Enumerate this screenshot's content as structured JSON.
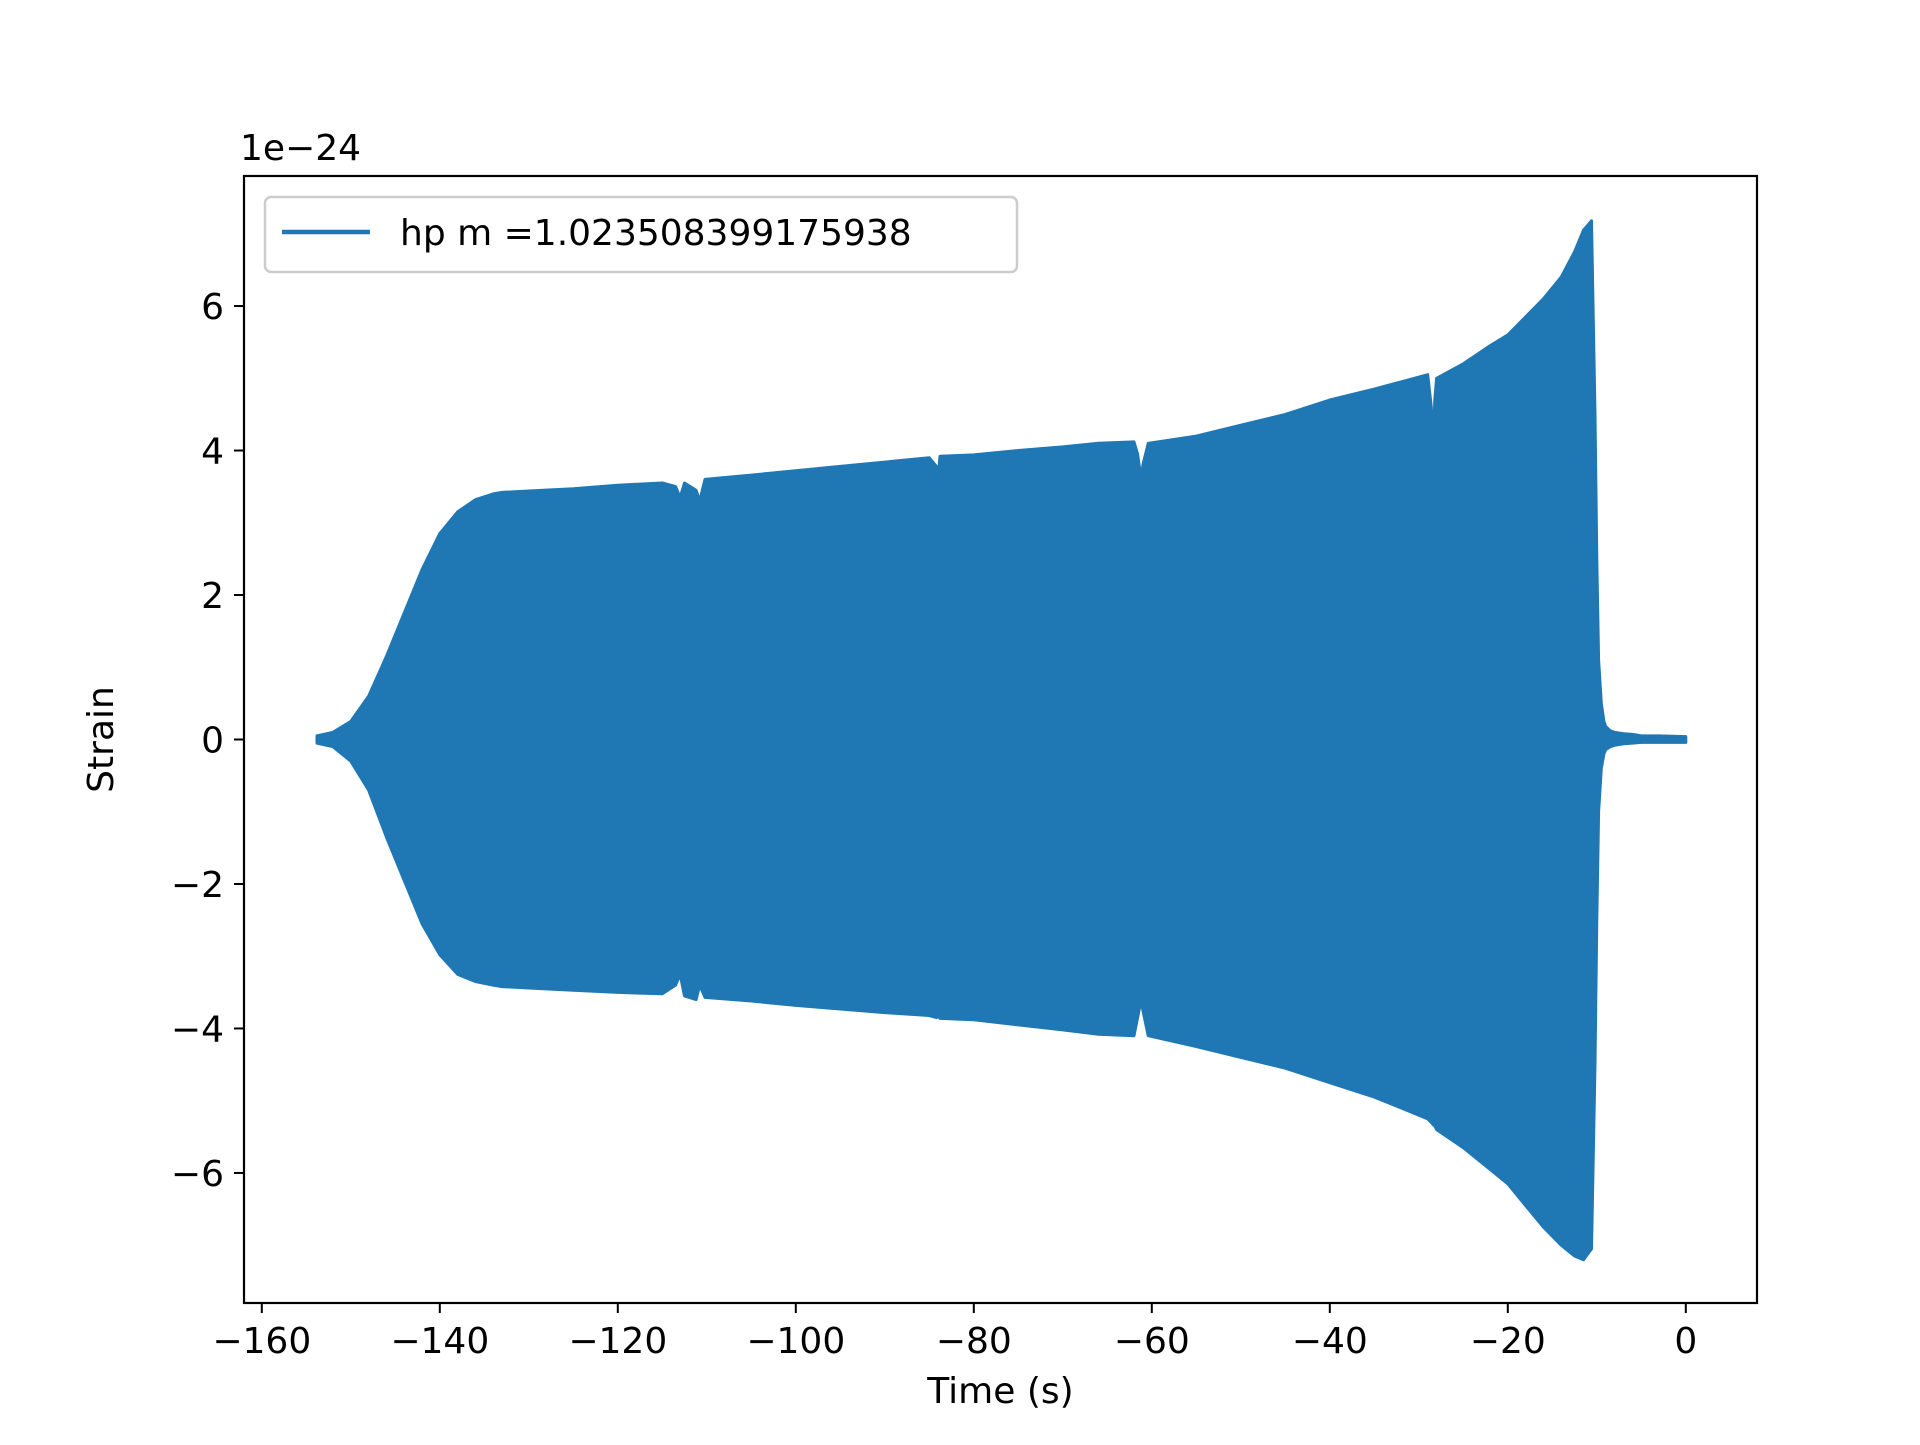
{
  "chart_data": {
    "type": "line",
    "title": "",
    "xlabel": "Time (s)",
    "ylabel": "Strain",
    "offset_text": "1e−24",
    "xlim": [
      -162,
      8
    ],
    "ylim": [
      -7.8,
      7.8
    ],
    "xticks": [
      -160,
      -140,
      -120,
      -100,
      -80,
      -60,
      -40,
      -20,
      0
    ],
    "xtick_labels": [
      "−160",
      "−140",
      "−120",
      "−100",
      "−80",
      "−60",
      "−40",
      "−20",
      "0"
    ],
    "yticks": [
      -6,
      -4,
      -2,
      0,
      2,
      4,
      6
    ],
    "ytick_labels": [
      "−6",
      "−4",
      "−2",
      "0",
      "2",
      "4",
      "6"
    ],
    "grid": false,
    "legend_position": "top-left",
    "series": [
      {
        "name": "hp m =1.023508399175938",
        "color": "#1f77b4",
        "style": "dense oscillation; envelope shown",
        "x": [
          -153.8,
          -152,
          -150,
          -148,
          -146,
          -144,
          -142,
          -140,
          -138,
          -136,
          -134,
          -133,
          -130,
          -125,
          -120,
          -115,
          -113.5,
          -113,
          -112.5,
          -111.2,
          -110.8,
          -110.2,
          -105,
          -100,
          -95,
          -90,
          -85,
          -84.2,
          -84,
          -83.8,
          -80,
          -75,
          -70,
          -66,
          -62,
          -61.6,
          -61.2,
          -61,
          -60.4,
          -55,
          -50,
          -45,
          -40,
          -35,
          -32,
          -29,
          -28.6,
          -28.4,
          -28.2,
          -28,
          -25,
          -22,
          -20,
          -18,
          -16,
          -14,
          -12.5,
          -11.5,
          -10.6,
          -10.2,
          -10.0,
          -9.8,
          -9.5,
          -9.2,
          -9.0,
          -8.5,
          -8.0,
          -7.0,
          -6.0,
          -5.0,
          -3.0,
          0
        ],
        "y_upper": [
          0.05,
          0.1,
          0.25,
          0.6,
          1.15,
          1.75,
          2.35,
          2.85,
          3.15,
          3.32,
          3.4,
          3.42,
          3.44,
          3.47,
          3.52,
          3.55,
          3.5,
          3.35,
          3.55,
          3.45,
          3.3,
          3.6,
          3.66,
          3.72,
          3.78,
          3.84,
          3.9,
          3.78,
          3.65,
          3.92,
          3.94,
          4.0,
          4.05,
          4.1,
          4.12,
          3.95,
          3.6,
          3.8,
          4.1,
          4.2,
          4.35,
          4.5,
          4.7,
          4.85,
          4.95,
          5.05,
          4.6,
          4.0,
          4.7,
          5.0,
          5.2,
          5.45,
          5.6,
          5.85,
          6.1,
          6.4,
          6.75,
          7.05,
          7.18,
          4.5,
          2.5,
          1.1,
          0.5,
          0.25,
          0.18,
          0.12,
          0.1,
          0.08,
          0.07,
          0.05,
          0.05,
          0.04
        ],
        "y_lower": [
          -0.05,
          -0.1,
          -0.3,
          -0.7,
          -1.35,
          -1.95,
          -2.55,
          -2.98,
          -3.25,
          -3.35,
          -3.4,
          -3.42,
          -3.44,
          -3.47,
          -3.5,
          -3.52,
          -3.4,
          -3.25,
          -3.55,
          -3.6,
          -3.4,
          -3.57,
          -3.62,
          -3.68,
          -3.73,
          -3.78,
          -3.82,
          -3.85,
          -3.82,
          -3.86,
          -3.88,
          -3.95,
          -4.02,
          -4.08,
          -4.1,
          -3.85,
          -3.6,
          -3.75,
          -4.1,
          -4.25,
          -4.4,
          -4.55,
          -4.75,
          -4.95,
          -5.1,
          -5.25,
          -5.3,
          -5.33,
          -5.35,
          -5.4,
          -5.65,
          -5.95,
          -6.15,
          -6.45,
          -6.75,
          -7.0,
          -7.15,
          -7.2,
          -7.05,
          -4.5,
          -2.5,
          -1.0,
          -0.4,
          -0.2,
          -0.14,
          -0.1,
          -0.08,
          -0.06,
          -0.05,
          -0.04,
          -0.04,
          -0.04
        ]
      }
    ]
  }
}
